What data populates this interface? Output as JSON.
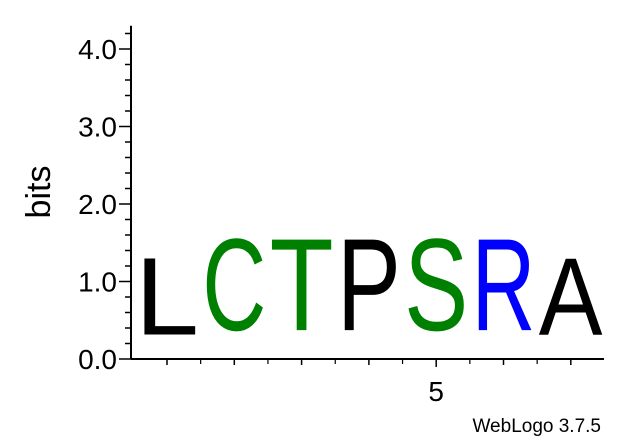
{
  "chart_data": {
    "type": "sequence-logo",
    "ylabel": "bits",
    "ylim": [
      0,
      4.3
    ],
    "y_ticks": [
      "0.0",
      "1.0",
      "2.0",
      "3.0",
      "4.0"
    ],
    "x_ticks": [
      {
        "position": 5,
        "label": "5"
      }
    ],
    "positions": [
      {
        "pos": 1,
        "letters": [
          {
            "char": "L",
            "bits": 1.6,
            "color": "#000000"
          }
        ]
      },
      {
        "pos": 2,
        "letters": [
          {
            "char": "C",
            "bits": 1.9,
            "color": "#008000"
          }
        ]
      },
      {
        "pos": 3,
        "letters": [
          {
            "char": "T",
            "bits": 1.9,
            "color": "#008000"
          }
        ]
      },
      {
        "pos": 4,
        "letters": [
          {
            "char": "P",
            "bits": 1.9,
            "color": "#000000"
          }
        ]
      },
      {
        "pos": 5,
        "letters": [
          {
            "char": "S",
            "bits": 1.9,
            "color": "#008000"
          }
        ]
      },
      {
        "pos": 6,
        "letters": [
          {
            "char": "R",
            "bits": 1.9,
            "color": "#0000ff"
          }
        ]
      },
      {
        "pos": 7,
        "letters": [
          {
            "char": "A",
            "bits": 1.6,
            "color": "#000000"
          }
        ]
      }
    ]
  },
  "footer": {
    "text": "WebLogo 3.7.5"
  }
}
